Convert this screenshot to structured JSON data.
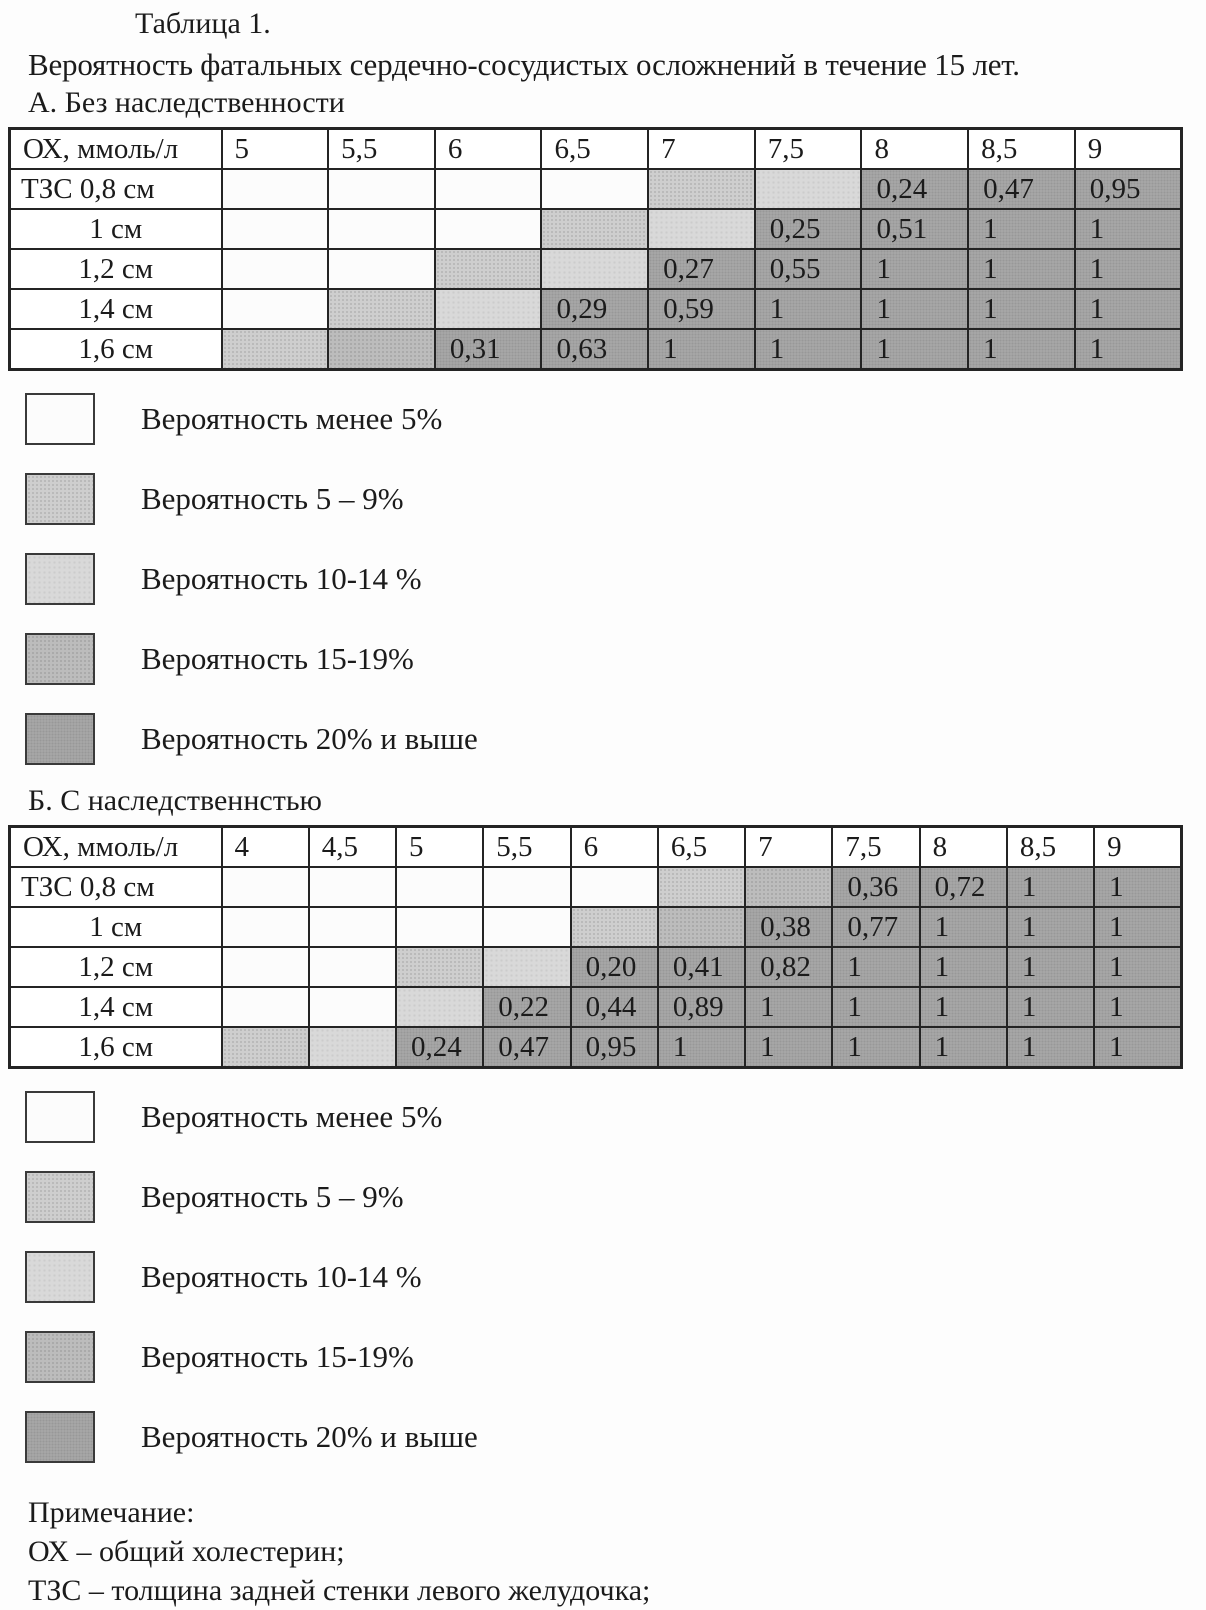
{
  "page": {
    "title": "Таблица 1.",
    "subtitle": "Вероятность фатальных сердечно-сосудистых осложнений в течение 15 лет."
  },
  "colors": {
    "shade_less5": "#fcfcfc",
    "shade_5_9": "#cecece",
    "shade_10_14": "#d9d9d9",
    "shade_15_19": "#bcbcbc",
    "shade_20_plus": "#a9a9a9",
    "border": "#242424",
    "text": "#1b1b1b",
    "background": "#fdfdfd"
  },
  "legend": {
    "items": [
      {
        "label": "Вероятность менее 5%",
        "shade": 0
      },
      {
        "label": "Вероятность 5 – 9%",
        "shade": 1
      },
      {
        "label": "Вероятность 10-14 %",
        "shade": 2
      },
      {
        "label": "Вероятность 15-19%",
        "shade": 3
      },
      {
        "label": "Вероятность 20% и выше",
        "shade": 4
      }
    ]
  },
  "tables": [
    {
      "section_label": "А. Без наследственности",
      "corner_header": "ОХ, ммоль/л",
      "col_headers": [
        "5",
        "5,5",
        "6",
        "6,5",
        "7",
        "7,5",
        "8",
        "8,5",
        "9"
      ],
      "rows": [
        {
          "label": "ТЗС 0,8 см",
          "cells": [
            {
              "s": 0
            },
            {
              "s": 0
            },
            {
              "s": 0
            },
            {
              "s": 0
            },
            {
              "s": 1
            },
            {
              "s": 2
            },
            {
              "s": 4,
              "v": "0,24"
            },
            {
              "s": 4,
              "v": "0,47"
            },
            {
              "s": 4,
              "v": "0,95"
            }
          ]
        },
        {
          "label": "1 см",
          "cells": [
            {
              "s": 0
            },
            {
              "s": 0
            },
            {
              "s": 0
            },
            {
              "s": 1
            },
            {
              "s": 2
            },
            {
              "s": 4,
              "v": "0,25"
            },
            {
              "s": 4,
              "v": "0,51"
            },
            {
              "s": 4,
              "v": "1"
            },
            {
              "s": 4,
              "v": "1"
            }
          ]
        },
        {
          "label": "1,2 см",
          "cells": [
            {
              "s": 0
            },
            {
              "s": 0
            },
            {
              "s": 1
            },
            {
              "s": 2
            },
            {
              "s": 4,
              "v": "0,27"
            },
            {
              "s": 4,
              "v": "0,55"
            },
            {
              "s": 4,
              "v": "1"
            },
            {
              "s": 4,
              "v": "1"
            },
            {
              "s": 4,
              "v": "1"
            }
          ]
        },
        {
          "label": "1,4 см",
          "cells": [
            {
              "s": 0
            },
            {
              "s": 1
            },
            {
              "s": 2
            },
            {
              "s": 4,
              "v": "0,29"
            },
            {
              "s": 4,
              "v": "0,59"
            },
            {
              "s": 4,
              "v": "1",
              "a": "r"
            },
            {
              "s": 4,
              "v": "1"
            },
            {
              "s": 4,
              "v": "1"
            },
            {
              "s": 4,
              "v": "1"
            }
          ]
        },
        {
          "label": "1,6 см",
          "cells": [
            {
              "s": 1
            },
            {
              "s": 3
            },
            {
              "s": 4,
              "v": "0,31"
            },
            {
              "s": 4,
              "v": "0,63"
            },
            {
              "s": 4,
              "v": "1"
            },
            {
              "s": 4,
              "v": "1"
            },
            {
              "s": 4,
              "v": "1"
            },
            {
              "s": 4,
              "v": "1"
            },
            {
              "s": 4,
              "v": "1"
            }
          ]
        }
      ]
    },
    {
      "section_label": "Б. С наследственнстью",
      "corner_header": "ОХ, ммоль/л",
      "col_headers": [
        "4",
        "4,5",
        "5",
        "5,5",
        "6",
        "6,5",
        "7",
        "7,5",
        "8",
        "8,5",
        "9"
      ],
      "rows": [
        {
          "label": "ТЗС 0,8 см",
          "cells": [
            {
              "s": 0
            },
            {
              "s": 0
            },
            {
              "s": 0
            },
            {
              "s": 0
            },
            {
              "s": 0
            },
            {
              "s": 1
            },
            {
              "s": 3
            },
            {
              "s": 4,
              "v": "0,36"
            },
            {
              "s": 4,
              "v": "0,72"
            },
            {
              "s": 4,
              "v": "1"
            },
            {
              "s": 4,
              "v": "1"
            }
          ]
        },
        {
          "label": "1 см",
          "cells": [
            {
              "s": 0
            },
            {
              "s": 0
            },
            {
              "s": 0
            },
            {
              "s": 0
            },
            {
              "s": 1
            },
            {
              "s": 3
            },
            {
              "s": 4,
              "v": "0,38"
            },
            {
              "s": 4,
              "v": "0,77"
            },
            {
              "s": 4,
              "v": "1"
            },
            {
              "s": 4,
              "v": "1"
            },
            {
              "s": 4,
              "v": "1"
            }
          ]
        },
        {
          "label": "1,2 см",
          "cells": [
            {
              "s": 0
            },
            {
              "s": 0
            },
            {
              "s": 1
            },
            {
              "s": 2
            },
            {
              "s": 4,
              "v": "0,20"
            },
            {
              "s": 4,
              "v": "0,41"
            },
            {
              "s": 4,
              "v": "0,82"
            },
            {
              "s": 4,
              "v": "1"
            },
            {
              "s": 4,
              "v": "1"
            },
            {
              "s": 4,
              "v": "1"
            },
            {
              "s": 4,
              "v": "1"
            }
          ]
        },
        {
          "label": "1,4 см",
          "cells": [
            {
              "s": 0
            },
            {
              "s": 0
            },
            {
              "s": 2
            },
            {
              "s": 4,
              "v": "0,22"
            },
            {
              "s": 4,
              "v": "0,44"
            },
            {
              "s": 4,
              "v": "0,89"
            },
            {
              "s": 4,
              "v": "1"
            },
            {
              "s": 4,
              "v": "1"
            },
            {
              "s": 4,
              "v": "1"
            },
            {
              "s": 4,
              "v": "1"
            },
            {
              "s": 4,
              "v": "1"
            }
          ]
        },
        {
          "label": "1,6 см",
          "cells": [
            {
              "s": 1
            },
            {
              "s": 2
            },
            {
              "s": 4,
              "v": "0,24"
            },
            {
              "s": 4,
              "v": "0,47"
            },
            {
              "s": 4,
              "v": "0,95"
            },
            {
              "s": 4,
              "v": "1"
            },
            {
              "s": 4,
              "v": "1"
            },
            {
              "s": 4,
              "v": "1"
            },
            {
              "s": 4,
              "v": "1"
            },
            {
              "s": 4,
              "v": "1"
            },
            {
              "s": 4,
              "v": "1"
            }
          ]
        }
      ]
    }
  ],
  "notes": {
    "heading": "Примечание:",
    "lines": [
      "ОХ – общий холестерин;",
      "ТЗС – толщина задней стенки левого желудочка;"
    ]
  }
}
